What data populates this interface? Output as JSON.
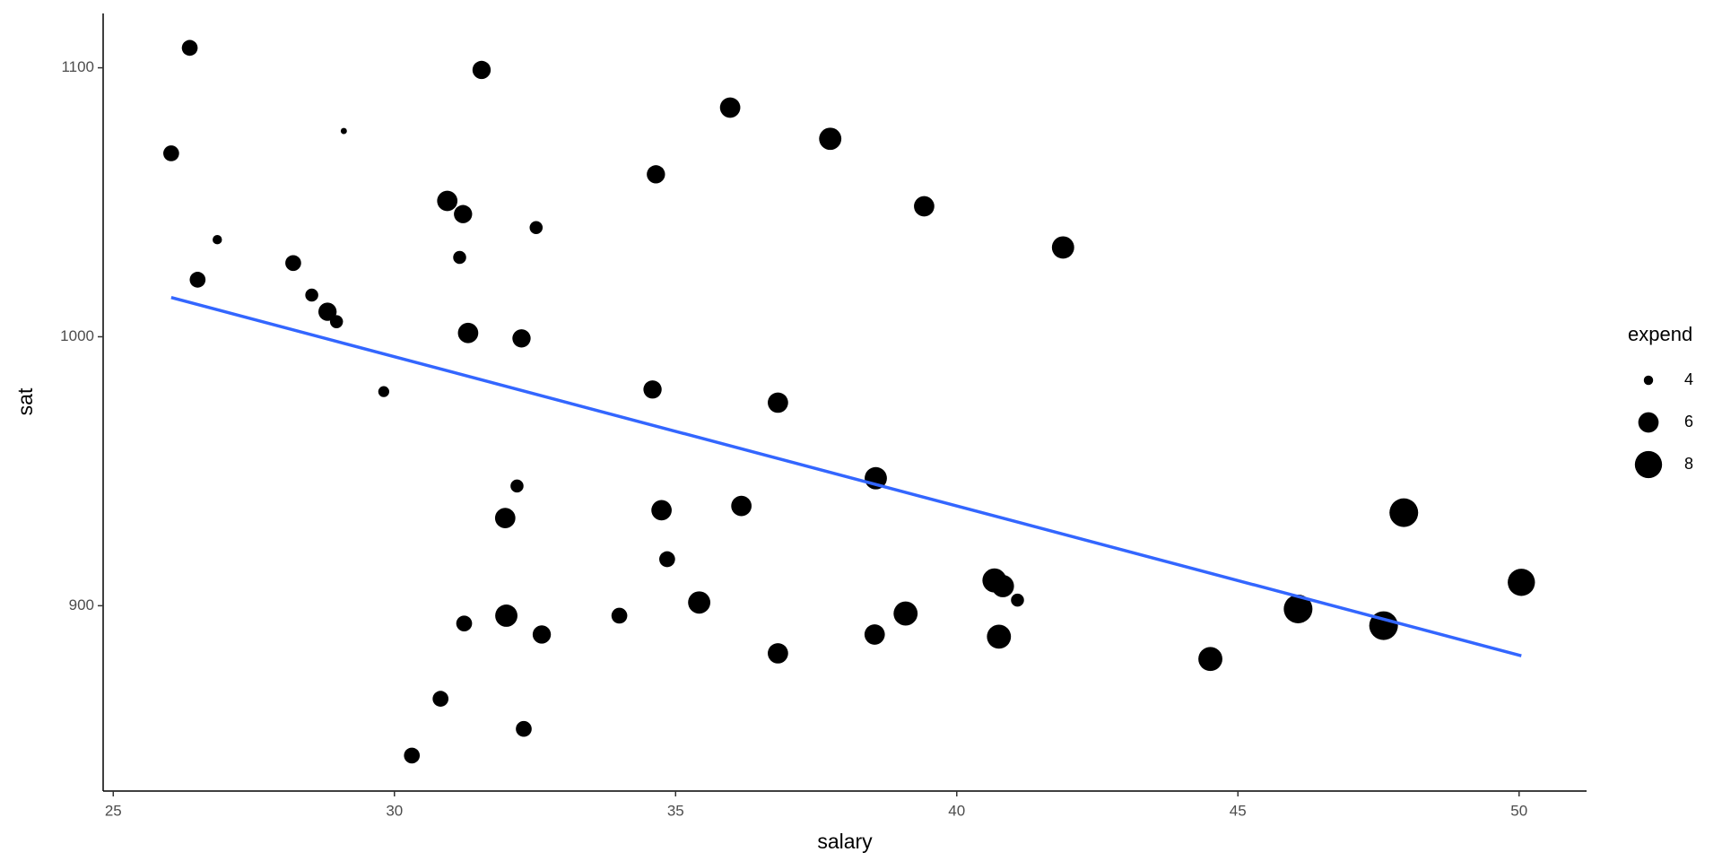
{
  "chart_data": {
    "type": "scatter",
    "xlabel": "salary",
    "ylabel": "sat",
    "xlim": [
      24.82,
      51.2
    ],
    "ylim": [
      831.1,
      1120.2
    ],
    "xticks": [
      25,
      30,
      35,
      40,
      45,
      50
    ],
    "yticks": [
      900,
      1000,
      1100
    ],
    "series": [
      {
        "name": "points",
        "color": "#000000",
        "x": [
          26.36,
          26.03,
          29.1,
          31.55,
          26.85,
          26.5,
          28.2,
          28.53,
          28.81,
          28.97,
          29.81,
          30.94,
          31.22,
          31.16,
          32.52,
          31.31,
          32.26,
          34.65,
          35.97,
          37.75,
          39.42,
          41.89,
          34.59,
          36.82,
          38.56,
          32.18,
          31.97,
          34.75,
          36.17,
          34.85,
          47.95,
          40.67,
          40.82,
          41.08,
          50.04,
          35.42,
          31.99,
          34.0,
          39.09,
          46.07,
          31.24,
          32.62,
          38.54,
          40.75,
          47.59,
          36.82,
          44.51,
          30.82,
          32.3,
          30.31
        ],
        "values": [
          1107.4,
          1068.2,
          1076.5,
          1099.2,
          1036.1,
          1021.2,
          1027.4,
          1015.5,
          1009.3,
          1005.6,
          979.6,
          1050.5,
          1045.6,
          1029.5,
          1040.6,
          1001.4,
          999.4,
          1060.4,
          1085.2,
          1073.6,
          1048.5,
          1033.2,
          980.4,
          975.5,
          947.4,
          944.5,
          932.6,
          935.5,
          937.1,
          917.3,
          934.6,
          909.4,
          907.3,
          902.1,
          908.7,
          901.2,
          896.3,
          896.3,
          897.1,
          898.8,
          893.4,
          889.3,
          889.3,
          888.5,
          892.6,
          882.3,
          880.2,
          865.4,
          854.2,
          844.3
        ],
        "sizes": [
          5,
          5,
          3.7,
          5.5,
          4,
          5,
          5,
          4.5,
          5.5,
          4.5,
          4.2,
          6,
          5.5,
          4.5,
          4.5,
          6,
          5.5,
          5.5,
          6,
          6.5,
          6,
          6.5,
          5.5,
          6,
          6.5,
          4.5,
          6,
          6,
          6,
          5,
          8.5,
          7,
          6.5,
          4.5,
          8,
          6.5,
          6.5,
          5,
          7,
          8.5,
          5,
          5.5,
          6,
          7,
          8.5,
          6,
          7,
          5,
          5,
          5
        ]
      },
      {
        "name": "fit",
        "color": "#3366ff",
        "x": [
          26.03,
          50.04
        ],
        "values": [
          1014.6,
          881.4
        ]
      }
    ],
    "size_legend": {
      "title": "expend",
      "values": [
        4,
        6,
        8
      ]
    }
  }
}
